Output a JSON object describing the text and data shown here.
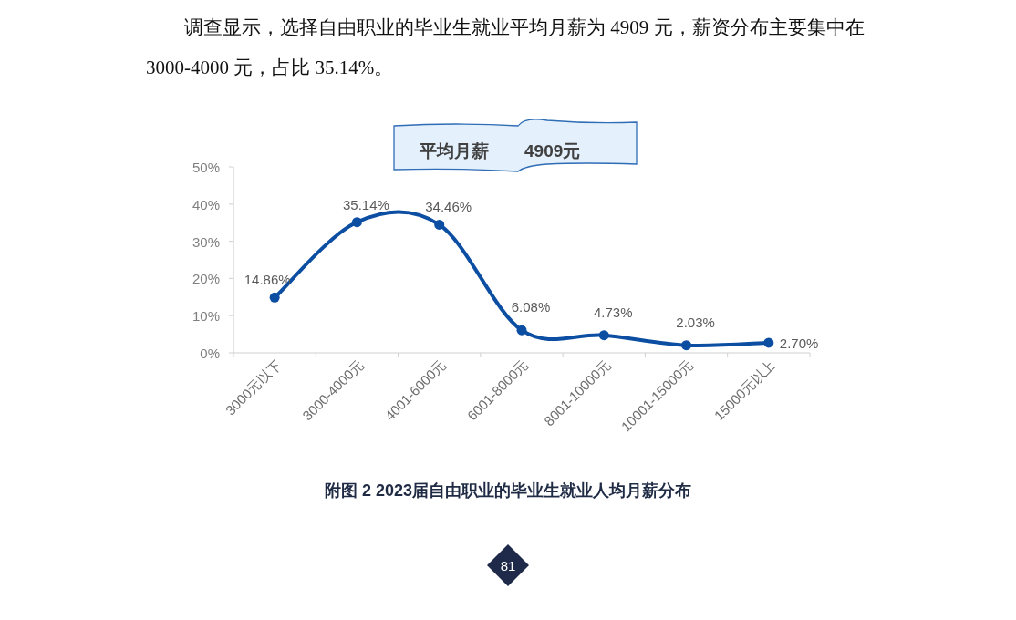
{
  "chart_data": {
    "type": "line",
    "title": "附图 2 2023届自由职业的毕业生就业人均月薪分布",
    "annotations": [
      "调查显示，选择自由职业的毕业生就业平均月薪为 4909 元，薪资分布主要集中在 3000-4000 元，占比 35.14%。",
      "平均月薪",
      "4909元",
      "81"
    ],
    "categories": [
      "3000元以下",
      "3000-4000元",
      "4001-6000元",
      "6001-8000元",
      "8001-10000元",
      "10001-15000元",
      "15000元以上"
    ],
    "series": [
      {
        "color": "#0b4ea2",
        "values": [
          14.86,
          35.14,
          34.46,
          6.08,
          4.73,
          2.03,
          2.7
        ],
        "value_labels": [
          "14.86%",
          "35.14%",
          "34.46%",
          "6.08%",
          "4.73%",
          "2.03%",
          "2.70%"
        ]
      }
    ],
    "ylim": [
      0,
      50
    ],
    "yticks": [
      {
        "value": 0,
        "label": "0%"
      },
      {
        "value": 10,
        "label": "10%"
      },
      {
        "value": 20,
        "label": "20%"
      },
      {
        "value": 30,
        "label": "30%"
      },
      {
        "value": 40,
        "label": "40%"
      },
      {
        "value": 50,
        "label": "50%"
      }
    ],
    "marker": "circle",
    "line_style": "solid",
    "grid": false
  }
}
